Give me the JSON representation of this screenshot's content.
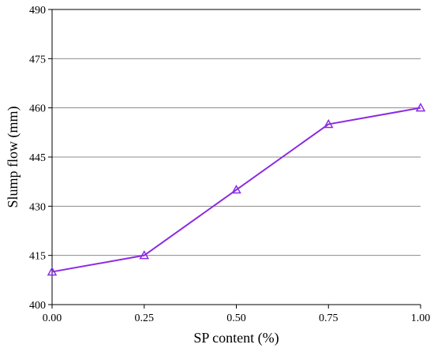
{
  "chart_data": {
    "type": "line",
    "title": "",
    "xlabel": "SP content (%)",
    "ylabel": "Slump flow (mm)",
    "x": [
      0.0,
      0.25,
      0.5,
      0.75,
      1.0
    ],
    "xticks": [
      "0.00",
      "0.25",
      "0.50",
      "0.75",
      "1.00"
    ],
    "xlim": [
      0,
      1
    ],
    "ylim": [
      400,
      490
    ],
    "yticks": [
      "400",
      "415",
      "430",
      "445",
      "460",
      "475",
      "490"
    ],
    "grid": "horizontal",
    "legend": "none",
    "series": [
      {
        "values": [
          410,
          415,
          435,
          455,
          460
        ],
        "color": "#8B2BE2",
        "marker": "triangle"
      }
    ]
  }
}
